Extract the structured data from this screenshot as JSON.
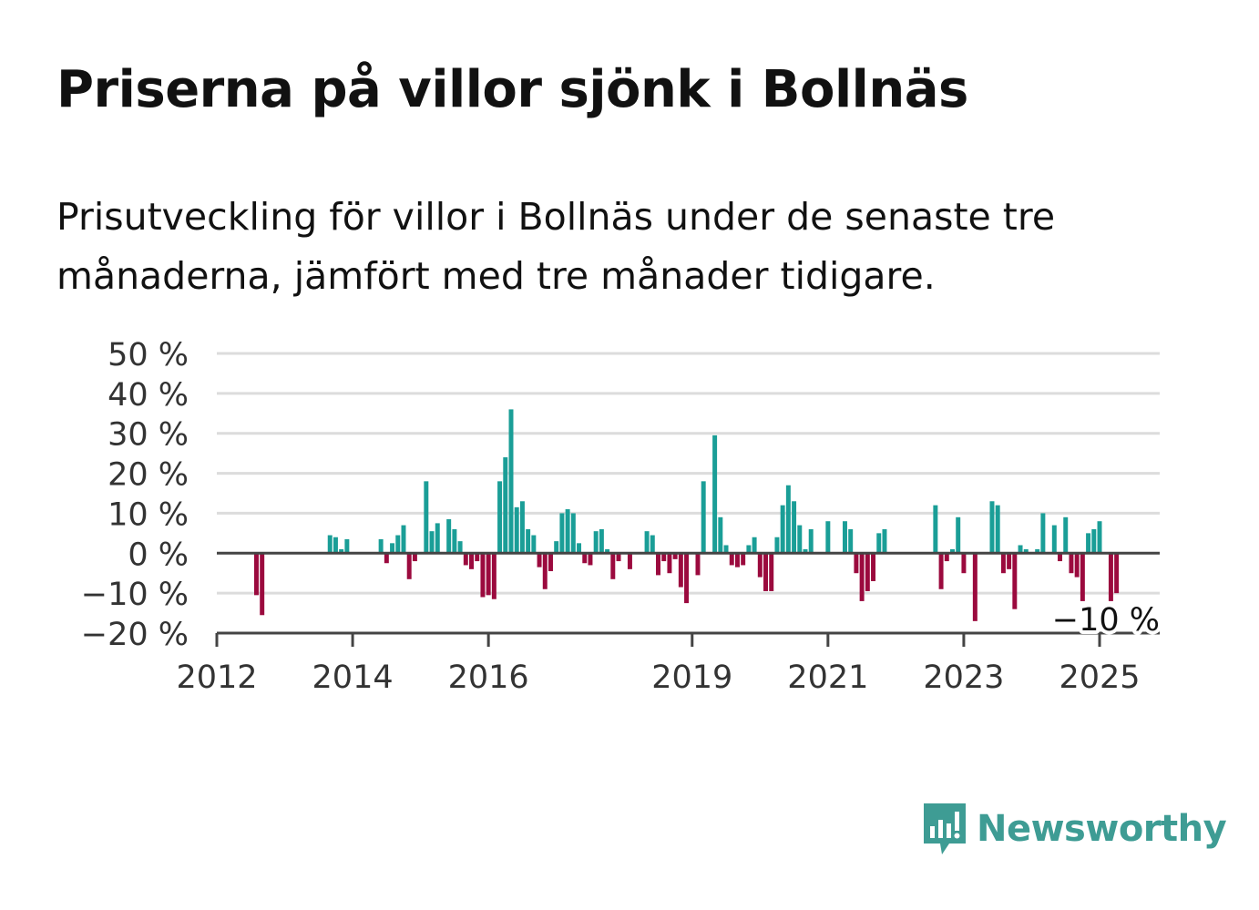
{
  "header": {
    "title": "Priserna på villor sjönk i Bollnäs",
    "subtitle": "Prisutveckling för villor i Bollnäs under de senaste tre månaderna, jämfört med tre månader tidigare."
  },
  "brand": {
    "name": "Newsworthy",
    "color": "#3e9c94"
  },
  "colors": {
    "positive": "#1a9e97",
    "negative": "#9b0a3e",
    "grid": "#dcdcdc",
    "axis": "#444444"
  },
  "chart_data": {
    "type": "bar",
    "ylim": [
      -20,
      50
    ],
    "y_ticks": [
      50,
      40,
      30,
      20,
      10,
      0,
      -10,
      -20
    ],
    "y_tick_labels": [
      "50 %",
      "40 %",
      "30 %",
      "20 %",
      "10 %",
      "0 %",
      "−10 %",
      "−20 %"
    ],
    "x_ticks": [
      "2012",
      "2014",
      "2016",
      "2019",
      "2021",
      "2023",
      "2025"
    ],
    "xlim": [
      "2012-01",
      "2025-12"
    ],
    "annotation": {
      "text": "−10 %",
      "x": "2025-05",
      "y": -10
    },
    "grid": true,
    "series": [
      {
        "points": [
          [
            "2012-08",
            -10.5
          ],
          [
            "2012-09",
            -15.5
          ],
          [
            "2013-09",
            4.5
          ],
          [
            "2013-10",
            4
          ],
          [
            "2013-11",
            1
          ],
          [
            "2013-12",
            3.5
          ],
          [
            "2014-06",
            3.5
          ],
          [
            "2014-07",
            -2.5
          ],
          [
            "2014-08",
            2.5
          ],
          [
            "2014-09",
            4.5
          ],
          [
            "2014-10",
            7
          ],
          [
            "2014-11",
            -6.5
          ],
          [
            "2014-12",
            -2
          ],
          [
            "2015-02",
            18
          ],
          [
            "2015-03",
            5.5
          ],
          [
            "2015-04",
            7.5
          ],
          [
            "2015-06",
            8.5
          ],
          [
            "2015-07",
            6
          ],
          [
            "2015-08",
            3
          ],
          [
            "2015-09",
            -3
          ],
          [
            "2015-10",
            -4
          ],
          [
            "2015-11",
            -2
          ],
          [
            "2015-12",
            -11
          ],
          [
            "2016-01",
            -10.5
          ],
          [
            "2016-02",
            -11.5
          ],
          [
            "2016-03",
            18
          ],
          [
            "2016-04",
            24
          ],
          [
            "2016-05",
            36
          ],
          [
            "2016-06",
            11.5
          ],
          [
            "2016-07",
            13
          ],
          [
            "2016-08",
            6
          ],
          [
            "2016-09",
            4.5
          ],
          [
            "2016-10",
            -3.5
          ],
          [
            "2016-11",
            -9
          ],
          [
            "2016-12",
            -4.5
          ],
          [
            "2017-01",
            3
          ],
          [
            "2017-02",
            10
          ],
          [
            "2017-03",
            11
          ],
          [
            "2017-04",
            10
          ],
          [
            "2017-05",
            2.5
          ],
          [
            "2017-06",
            -2.5
          ],
          [
            "2017-07",
            -3
          ],
          [
            "2017-08",
            5.5
          ],
          [
            "2017-09",
            6
          ],
          [
            "2017-10",
            1
          ],
          [
            "2017-11",
            -6.5
          ],
          [
            "2017-12",
            -2
          ],
          [
            "2018-02",
            -4
          ],
          [
            "2018-05",
            5.5
          ],
          [
            "2018-06",
            4.5
          ],
          [
            "2018-07",
            -5.5
          ],
          [
            "2018-08",
            -2
          ],
          [
            "2018-09",
            -5
          ],
          [
            "2018-10",
            -1.5
          ],
          [
            "2018-11",
            -8.5
          ],
          [
            "2018-12",
            -12.5
          ],
          [
            "2019-02",
            -5.5
          ],
          [
            "2019-03",
            18
          ],
          [
            "2019-05",
            29.5
          ],
          [
            "2019-06",
            9
          ],
          [
            "2019-07",
            2
          ],
          [
            "2019-08",
            -3
          ],
          [
            "2019-09",
            -3.5
          ],
          [
            "2019-10",
            -3
          ],
          [
            "2019-11",
            2
          ],
          [
            "2019-12",
            4
          ],
          [
            "2020-01",
            -6
          ],
          [
            "2020-02",
            -9.5
          ],
          [
            "2020-03",
            -9.5
          ],
          [
            "2020-04",
            4
          ],
          [
            "2020-05",
            12
          ],
          [
            "2020-06",
            17
          ],
          [
            "2020-07",
            13
          ],
          [
            "2020-08",
            7
          ],
          [
            "2020-09",
            1
          ],
          [
            "2020-10",
            6
          ],
          [
            "2021-01",
            8
          ],
          [
            "2021-04",
            8
          ],
          [
            "2021-05",
            6
          ],
          [
            "2021-06",
            -5
          ],
          [
            "2021-07",
            -12
          ],
          [
            "2021-08",
            -9.5
          ],
          [
            "2021-09",
            -7
          ],
          [
            "2021-10",
            5
          ],
          [
            "2021-11",
            6
          ],
          [
            "2022-08",
            12
          ],
          [
            "2022-09",
            -9
          ],
          [
            "2022-10",
            -2
          ],
          [
            "2022-11",
            1
          ],
          [
            "2022-12",
            9
          ],
          [
            "2023-01",
            -5
          ],
          [
            "2023-03",
            -17
          ],
          [
            "2023-06",
            13
          ],
          [
            "2023-07",
            12
          ],
          [
            "2023-08",
            -5
          ],
          [
            "2023-09",
            -4
          ],
          [
            "2023-10",
            -14
          ],
          [
            "2023-11",
            2
          ],
          [
            "2023-12",
            1
          ],
          [
            "2024-02",
            1
          ],
          [
            "2024-03",
            10
          ],
          [
            "2024-05",
            7
          ],
          [
            "2024-06",
            -2
          ],
          [
            "2024-07",
            9
          ],
          [
            "2024-08",
            -5
          ],
          [
            "2024-09",
            -6
          ],
          [
            "2024-10",
            -12
          ],
          [
            "2024-11",
            5
          ],
          [
            "2024-12",
            6
          ],
          [
            "2025-01",
            8
          ],
          [
            "2025-03",
            -12
          ],
          [
            "2025-04",
            -10
          ]
        ]
      }
    ]
  }
}
